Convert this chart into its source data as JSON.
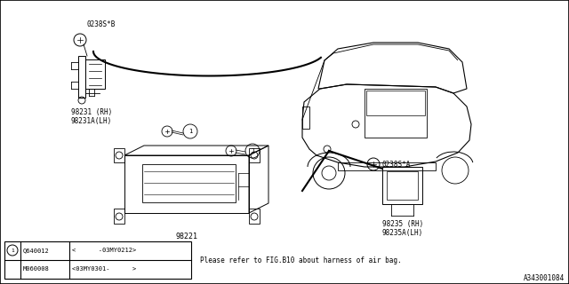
{
  "bg_color": "#ffffff",
  "diagram_id": "A343001084",
  "note_text": "Please refer to FIG.B10 about harness of air bag.",
  "table_rows": [
    {
      "has_circle": true,
      "col1": "Q640012",
      "col2": "<      -03MY0212>"
    },
    {
      "has_circle": false,
      "col1": "M060008",
      "col2": "<03MY0301-      >"
    }
  ],
  "label_0238SB": "0238S*B",
  "label_98231": "98231 (RH)\n98231A(LH)",
  "label_98221": "98221",
  "label_0238SA": "0238S*A",
  "label_98235": "98235 (RH)\n98235A(LH)"
}
